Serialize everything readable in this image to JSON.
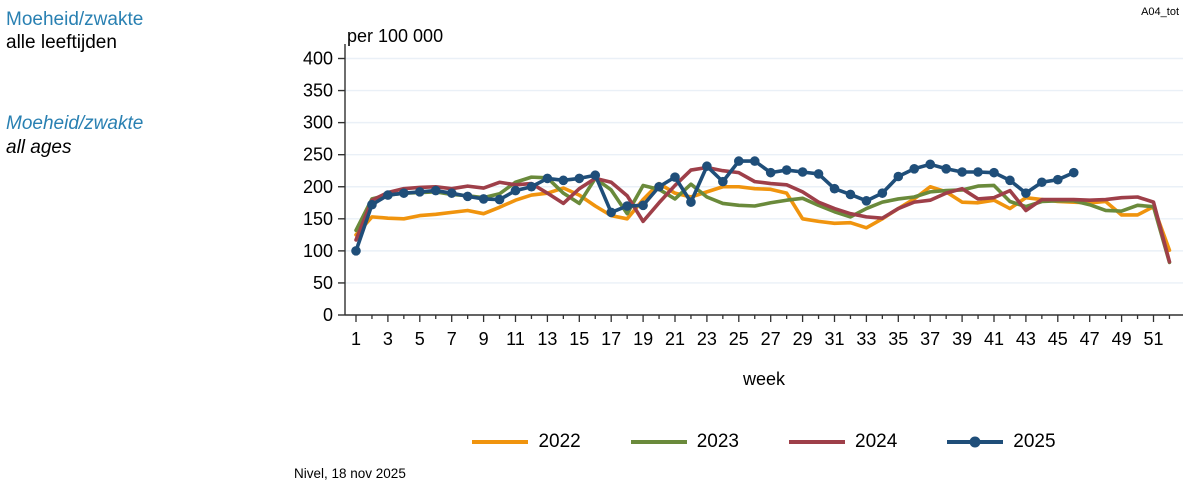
{
  "header": {
    "code": "A04_tot",
    "title_nl": "Moeheid/zwakte",
    "subtitle_nl": "alle leeftijden",
    "title_en": "Moeheid/zwakte",
    "subtitle_en": "all ages",
    "title_color": "#2980B2"
  },
  "footer": {
    "source": "Nivel, 18 nov 2025"
  },
  "chart_data": {
    "type": "line",
    "unit_label": "per 100 000",
    "xlabel": "week",
    "ylim": [
      0,
      400
    ],
    "y_ticks": [
      0,
      50,
      100,
      150,
      200,
      250,
      300,
      350,
      400
    ],
    "x_range": [
      1,
      52
    ],
    "x_tick_labels": [
      1,
      3,
      5,
      7,
      9,
      11,
      13,
      15,
      17,
      19,
      21,
      23,
      25,
      27,
      29,
      31,
      33,
      35,
      37,
      39,
      41,
      43,
      45,
      47,
      49,
      51
    ],
    "grid": true,
    "grid_color": "#EAF0F7",
    "axis_color": "#303030",
    "legend_position": "bottom",
    "weeks": [
      1,
      2,
      3,
      4,
      5,
      6,
      7,
      8,
      9,
      10,
      11,
      12,
      13,
      14,
      15,
      16,
      17,
      18,
      19,
      20,
      21,
      22,
      23,
      24,
      25,
      26,
      27,
      28,
      29,
      30,
      31,
      32,
      33,
      34,
      35,
      36,
      37,
      38,
      39,
      40,
      41,
      42,
      43,
      44,
      45,
      46,
      47,
      48,
      49,
      50,
      51,
      52
    ],
    "series": [
      {
        "name": "2022",
        "color": "#F0940E",
        "marker": false,
        "values": [
          125,
          153,
          151,
          150,
          155,
          157,
          160,
          163,
          158,
          168,
          179,
          187,
          190,
          198,
          187,
          170,
          155,
          150,
          180,
          205,
          190,
          184,
          192,
          200,
          200,
          197,
          196,
          190,
          150,
          146,
          143,
          144,
          136,
          150,
          166,
          181,
          200,
          192,
          176,
          175,
          179,
          166,
          183,
          180,
          177,
          176,
          175,
          177,
          156,
          156,
          169,
          101
        ]
      },
      {
        "name": "2023",
        "color": "#6A8A3B",
        "marker": false,
        "values": [
          132,
          181,
          187,
          190,
          191,
          192,
          188,
          186,
          183,
          189,
          207,
          215,
          214,
          190,
          174,
          213,
          195,
          158,
          202,
          196,
          181,
          204,
          184,
          174,
          171,
          170,
          175,
          179,
          182,
          171,
          161,
          153,
          166,
          176,
          181,
          184,
          192,
          194,
          195,
          201,
          202,
          177,
          169,
          177,
          178,
          178,
          172,
          163,
          162,
          171,
          169,
          82
        ]
      },
      {
        "name": "2024",
        "color": "#9E3F49",
        "marker": false,
        "values": [
          117,
          179,
          191,
          197,
          199,
          200,
          197,
          201,
          198,
          207,
          203,
          205,
          190,
          174,
          197,
          213,
          207,
          186,
          146,
          175,
          202,
          226,
          230,
          225,
          222,
          208,
          205,
          203,
          192,
          176,
          166,
          158,
          153,
          151,
          166,
          176,
          179,
          190,
          197,
          181,
          183,
          194,
          163,
          180,
          180,
          180,
          179,
          180,
          183,
          184,
          176,
          83
        ]
      },
      {
        "name": "2025",
        "color": "#1F4E79",
        "marker": true,
        "values": [
          100,
          172,
          187,
          190,
          192,
          194,
          190,
          185,
          181,
          180,
          194,
          200,
          213,
          210,
          213,
          218,
          160,
          170,
          171,
          200,
          215,
          176,
          232,
          208,
          240,
          240,
          222,
          226,
          223,
          220,
          197,
          188,
          178,
          190,
          216,
          228,
          235,
          228,
          223,
          223,
          222,
          210,
          190,
          207,
          211,
          222
        ]
      }
    ]
  }
}
